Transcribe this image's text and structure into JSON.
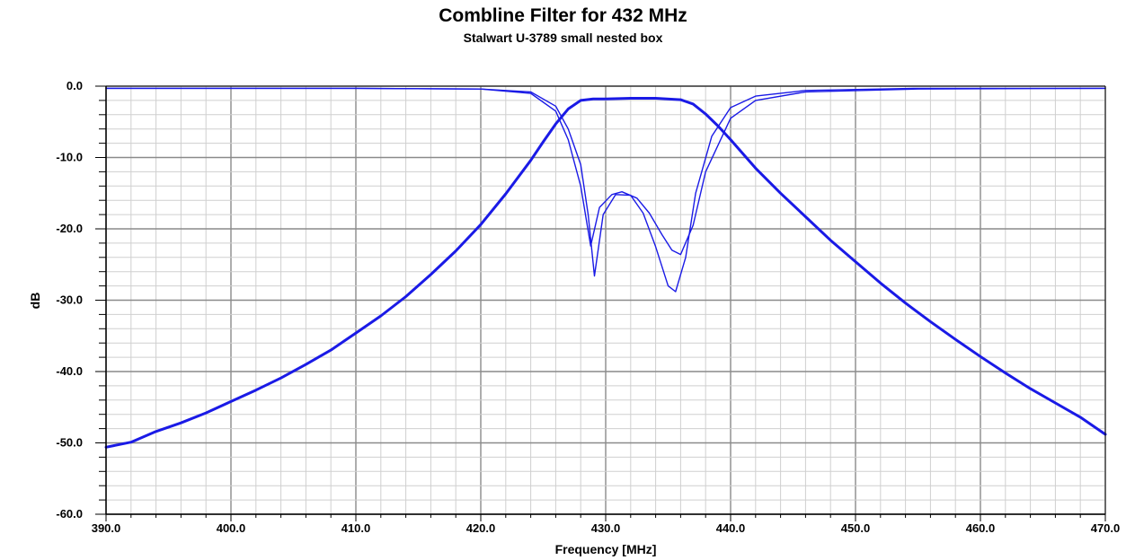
{
  "chart_data": {
    "type": "line",
    "title": "Combline Filter for 432 MHz",
    "subtitle": "Stalwart U-3789 small nested box",
    "xlabel": "Frequency [MHz]",
    "ylabel": "dB",
    "xlim": [
      390,
      470
    ],
    "ylim": [
      -60,
      0
    ],
    "x_ticks": [
      "390.0",
      "400.0",
      "410.0",
      "420.0",
      "430.0",
      "440.0",
      "450.0",
      "460.0",
      "470.0"
    ],
    "y_ticks": [
      "0.0",
      "-10.0",
      "-20.0",
      "-30.0",
      "-40.0",
      "-50.0",
      "-60.0"
    ],
    "grid": true,
    "line_color": "#1a1ae6",
    "series": [
      {
        "role": "insertion loss (S21)",
        "x": [
          390,
          392,
          394,
          396,
          398,
          400,
          402,
          404,
          406,
          408,
          410,
          412,
          414,
          416,
          418,
          420,
          422,
          424,
          425,
          426,
          427,
          428,
          429,
          430,
          432,
          434,
          436,
          437,
          438,
          439,
          440,
          441,
          442,
          444,
          446,
          448,
          450,
          452,
          454,
          456,
          458,
          460,
          462,
          464,
          466,
          468,
          470
        ],
        "y": [
          -50.6,
          -49.9,
          -48.4,
          -47.2,
          -45.8,
          -44.2,
          -42.6,
          -40.9,
          -39.0,
          -37.0,
          -34.6,
          -32.2,
          -29.5,
          -26.4,
          -23.1,
          -19.4,
          -15.1,
          -10.4,
          -7.8,
          -5.3,
          -3.2,
          -2.0,
          -1.8,
          -1.8,
          -1.7,
          -1.7,
          -1.9,
          -2.5,
          -3.9,
          -5.6,
          -7.5,
          -9.5,
          -11.5,
          -15.0,
          -18.3,
          -21.6,
          -24.6,
          -27.6,
          -30.4,
          -33.0,
          -35.5,
          -37.9,
          -40.2,
          -42.4,
          -44.4,
          -46.4,
          -48.8
        ]
      },
      {
        "role": "return loss (S11) A",
        "x": [
          390,
          410,
          420,
          424,
          426,
          427,
          428,
          428.8,
          429.5,
          430.5,
          431.3,
          432.5,
          433.5,
          434.5,
          435.3,
          436,
          437,
          438,
          440,
          442,
          446,
          455,
          470
        ],
        "y": [
          -0.3,
          -0.3,
          -0.4,
          -1.0,
          -3.5,
          -7.5,
          -14.0,
          -22.4,
          -17.0,
          -15.2,
          -14.8,
          -15.7,
          -17.8,
          -20.8,
          -23.0,
          -23.6,
          -19.5,
          -12.0,
          -4.5,
          -2.0,
          -0.8,
          -0.4,
          -0.3
        ]
      },
      {
        "role": "return loss (S11) B",
        "x": [
          390,
          410,
          420,
          424,
          426,
          427,
          428,
          428.6,
          429.1,
          429.8,
          430.8,
          432,
          433,
          434,
          435,
          435.6,
          436.4,
          437.2,
          438.5,
          440,
          442,
          446,
          455,
          470
        ],
        "y": [
          -0.3,
          -0.3,
          -0.4,
          -0.8,
          -2.8,
          -6.0,
          -11.0,
          -18.0,
          -26.6,
          -18.0,
          -15.2,
          -15.3,
          -17.8,
          -22.5,
          -28.0,
          -28.8,
          -24.0,
          -15.0,
          -7.0,
          -3.0,
          -1.4,
          -0.6,
          -0.3,
          -0.3
        ]
      }
    ]
  }
}
